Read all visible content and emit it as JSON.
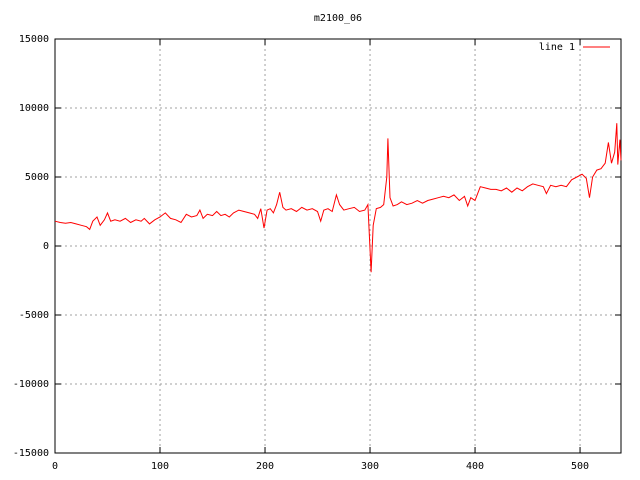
{
  "chart_data": {
    "type": "line",
    "title": "m2100_06",
    "x": [
      0,
      5,
      10,
      15,
      20,
      25,
      30,
      33,
      36,
      40,
      43,
      47,
      50,
      53,
      57,
      62,
      67,
      72,
      77,
      82,
      85,
      90,
      95,
      100,
      105,
      110,
      115,
      120,
      125,
      130,
      135,
      138,
      141,
      145,
      150,
      154,
      158,
      162,
      166,
      170,
      175,
      180,
      185,
      190,
      193,
      196,
      199,
      202,
      205,
      208,
      211,
      214,
      217,
      220,
      225,
      230,
      235,
      240,
      245,
      250,
      253,
      256,
      260,
      264,
      268,
      271,
      275,
      280,
      285,
      290,
      295,
      298,
      300,
      301,
      303,
      306,
      310,
      313,
      316,
      317,
      319,
      322,
      326,
      330,
      335,
      340,
      345,
      350,
      355,
      360,
      365,
      370,
      375,
      380,
      385,
      390,
      393,
      396,
      400,
      405,
      410,
      415,
      420,
      425,
      430,
      435,
      440,
      445,
      450,
      455,
      460,
      465,
      468,
      472,
      477,
      482,
      487,
      492,
      497,
      502,
      506,
      509,
      512,
      516,
      520,
      524,
      527,
      530,
      533,
      535,
      536,
      538,
      539
    ],
    "series": [
      {
        "name": "line 1",
        "color": "#ff0000",
        "values": [
          1800,
          1700,
          1650,
          1700,
          1600,
          1500,
          1400,
          1200,
          1800,
          2100,
          1500,
          1900,
          2400,
          1800,
          1900,
          1800,
          2000,
          1700,
          1900,
          1800,
          2000,
          1600,
          1900,
          2100,
          2400,
          2000,
          1900,
          1700,
          2300,
          2100,
          2200,
          2600,
          2000,
          2300,
          2200,
          2500,
          2200,
          2300,
          2100,
          2400,
          2600,
          2500,
          2400,
          2300,
          2000,
          2700,
          1300,
          2600,
          2700,
          2400,
          3000,
          3900,
          2800,
          2600,
          2700,
          2500,
          2800,
          2600,
          2700,
          2500,
          1800,
          2600,
          2700,
          2500,
          3700,
          3000,
          2600,
          2700,
          2800,
          2500,
          2600,
          3000,
          -200,
          -1900,
          1500,
          2700,
          2800,
          3000,
          5000,
          7800,
          3500,
          2900,
          3000,
          3200,
          3000,
          3100,
          3300,
          3100,
          3300,
          3400,
          3500,
          3600,
          3500,
          3700,
          3300,
          3600,
          2900,
          3500,
          3300,
          4300,
          4200,
          4100,
          4100,
          4000,
          4200,
          3900,
          4200,
          4000,
          4300,
          4500,
          4400,
          4300,
          3800,
          4400,
          4300,
          4400,
          4300,
          4800,
          5000,
          5200,
          4900,
          3500,
          5000,
          5500,
          5600,
          6000,
          7500,
          6000,
          6800,
          8900,
          5900,
          7700,
          6200
        ]
      }
    ],
    "xlim": [
      0,
      539
    ],
    "ylim": [
      -15000,
      15000
    ],
    "xticks": [
      0,
      100,
      200,
      300,
      400,
      500
    ],
    "yticks": [
      -15000,
      -10000,
      -5000,
      0,
      5000,
      10000,
      15000
    ],
    "grid": true,
    "legend": "upper right"
  }
}
